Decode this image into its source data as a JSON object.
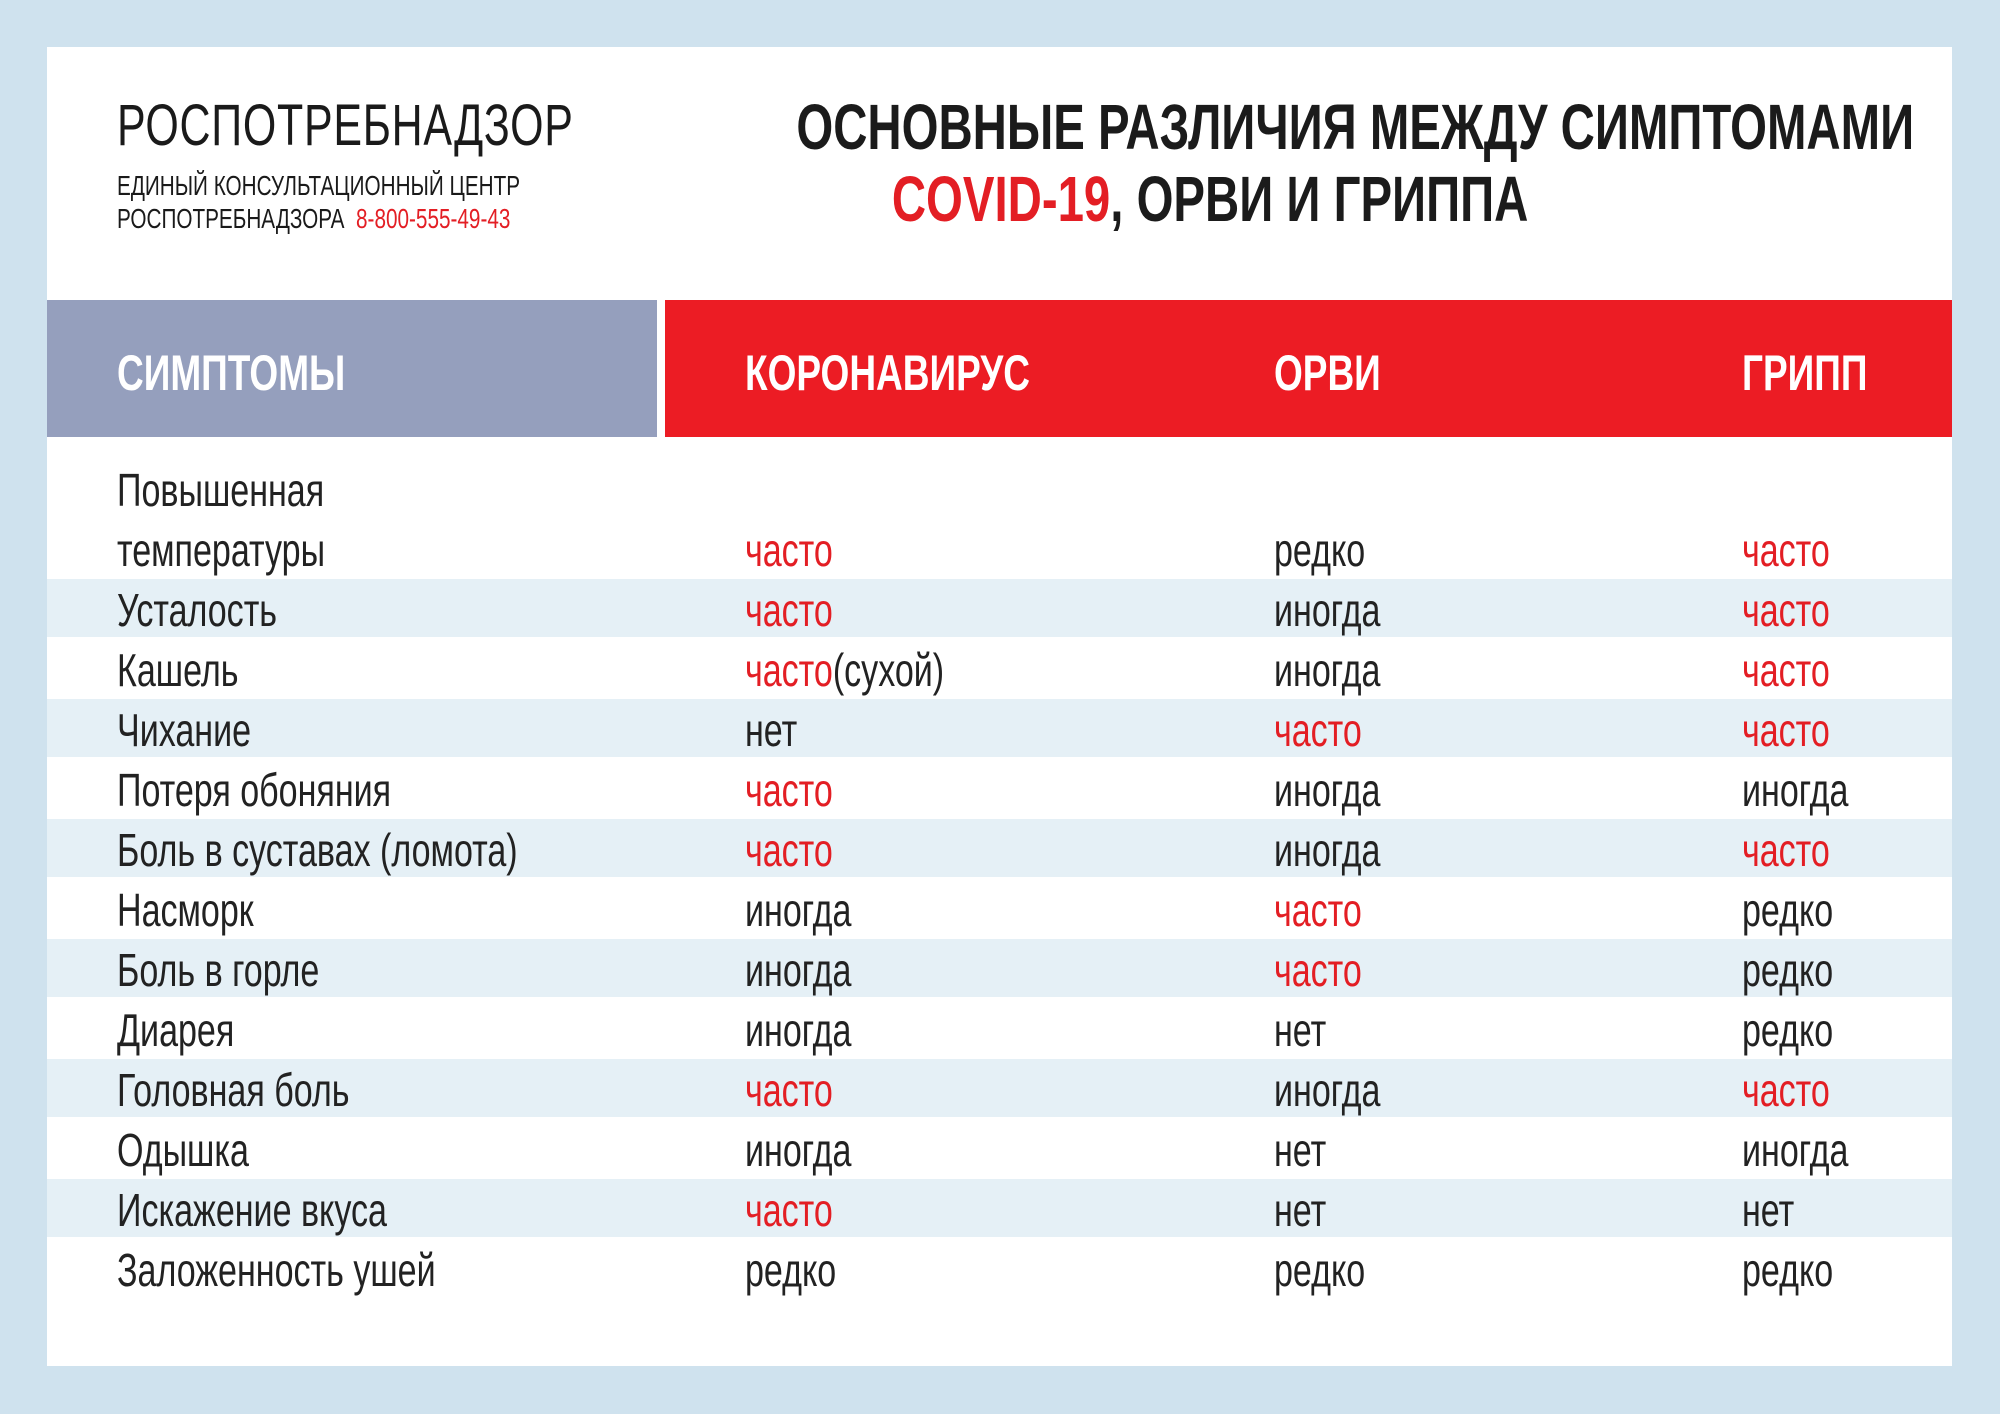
{
  "header": {
    "org": "РОСПОТРЕБНАДЗОР",
    "hotline_line1": "ЕДИНЫЙ КОНСУЛЬТАЦИОННЫЙ ЦЕНТР",
    "hotline_line2": "РОСПОТРЕБНАДЗОРА",
    "phone": "8-800-555-49-43",
    "title_line1": "ОСНОВНЫЕ РАЗЛИЧИЯ МЕЖДУ СИМПТОМАМИ",
    "title_covid": "COVID-19",
    "title_rest": ", ОРВИ И ГРИППА"
  },
  "colors": {
    "accent": "#e31e24",
    "header_gray": "#959fbd",
    "header_red": "#ec1c24",
    "stripe": "#e5f0f6",
    "background": "#cfe2ee"
  },
  "table": {
    "columns": [
      "СИМПТОМЫ",
      "КОРОНАВИРУС",
      "ОРВИ",
      "ГРИПП"
    ],
    "rows": [
      {
        "symptom": "Повышенная температуры",
        "symptom_l1": "Повышенная",
        "symptom_l2": "температуры",
        "covid": "часто",
        "orvi": "редко",
        "flu": "часто"
      },
      {
        "symptom": "Усталость",
        "covid": "часто",
        "orvi": "иногда",
        "flu": "часто"
      },
      {
        "symptom": "Кашель",
        "covid": "часто",
        "covid_note": "(сухой)",
        "orvi": "иногда",
        "flu": "часто"
      },
      {
        "symptom": "Чихание",
        "covid": "нет",
        "orvi": "часто",
        "flu": "часто"
      },
      {
        "symptom": "Потеря обоняния",
        "covid": "часто",
        "orvi": "иногда",
        "flu": "иногда"
      },
      {
        "symptom": "Боль в суставах (ломота)",
        "covid": "часто",
        "orvi": "иногда",
        "flu": "часто"
      },
      {
        "symptom": "Насморк",
        "covid": "иногда",
        "orvi": "часто",
        "flu": "редко"
      },
      {
        "symptom": "Боль в горле",
        "covid": "иногда",
        "orvi": "часто",
        "flu": "редко"
      },
      {
        "symptom": "Диарея",
        "covid": "иногда",
        "orvi": "нет",
        "flu": "редко"
      },
      {
        "symptom": "Головная боль",
        "covid": "часто",
        "orvi": "иногда",
        "flu": "часто"
      },
      {
        "symptom": "Одышка",
        "covid": "иногда",
        "orvi": "нет",
        "flu": "иногда"
      },
      {
        "symptom": "Искажение вкуса",
        "covid": "часто",
        "orvi": "нет",
        "flu": "нет"
      },
      {
        "symptom": "Заложенность ушей",
        "covid": "редко",
        "orvi": "редко",
        "flu": "редко"
      }
    ]
  }
}
